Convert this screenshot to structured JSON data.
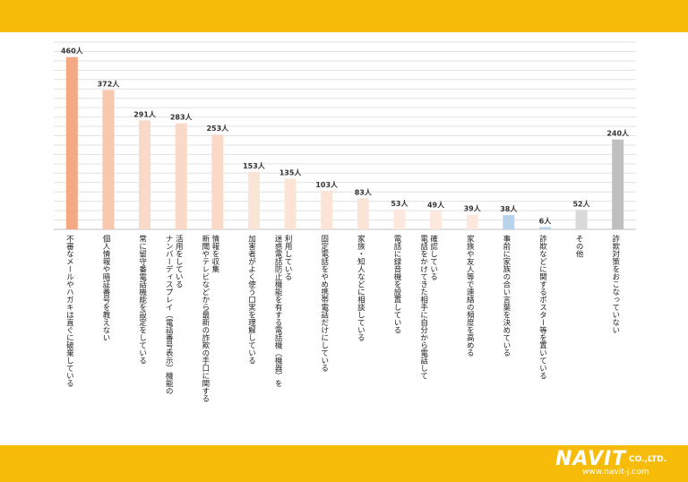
{
  "brand": {
    "name": "NAVIT",
    "suffix": "CO.,LTD.",
    "url": "www.navit-j.com",
    "color": "#F6BC09"
  },
  "chart_data": {
    "type": "bar",
    "unit": "人",
    "ylim": [
      0,
      500
    ],
    "grid": true,
    "legend": "none",
    "categories": [
      "不審なメールやハガキは直ぐに破棄している",
      "個人情報や暗証番号を教えない",
      "常に留守番電話機能を設定をしている",
      "ナンバーディスプレイ（電話番号表示）機能の活用をしている",
      "新聞やテレビなどから最新の詐欺の手口に関する情報を収集",
      "加害者がよく使う口実を理解している",
      "迷惑電話防止機能を有する電話機（機器）を利用している",
      "固定電話をやめ携帯電話だけにしている",
      "家族・知人などに相談している",
      "電話に録音機を設置している",
      "電話をかけてきた相手に自分から電話して確認している",
      "家族や友人等で連絡の頻度を高める",
      "事前に家族の合い言葉を決めている",
      "詐欺などに関するポスター等を置いている",
      "その他",
      "詐欺対策をおこなっていない"
    ],
    "values": [
      460,
      372,
      291,
      283,
      253,
      153,
      135,
      103,
      83,
      53,
      49,
      39,
      38,
      6,
      52,
      240
    ],
    "value_labels": [
      "460人",
      "372人",
      "291人",
      "283人",
      "253人",
      "153人",
      "135人",
      "103人",
      "83人",
      "53人",
      "49人",
      "39人",
      "38人",
      "6人",
      "52人",
      "240人"
    ],
    "label_lines": [
      [
        "不審なメールやハガキは直ぐに破棄している"
      ],
      [
        "個人情報や暗証番号を教えない"
      ],
      [
        "常に留守番電話機能を設定をしている"
      ],
      [
        "ナンバーディスプレイ（電話番号表示）機能の",
        "活用をしている"
      ],
      [
        "新聞やテレビなどから最新の詐欺の手口に関する",
        "情報を収集"
      ],
      [
        "加害者がよく使う口実を理解している"
      ],
      [
        "迷惑電話防止機能を有する電話機（機器）を",
        "利用している"
      ],
      [
        "固定電話をやめ携帯電話だけにしている"
      ],
      [
        "家族・知人などに相談している"
      ],
      [
        "電話に録音機を設置している"
      ],
      [
        "電話をかけてきた相手に自分から電話して",
        "確認している"
      ],
      [
        "家族や友人等で連絡の頻度を高める"
      ],
      [
        "事前に家族の合い言葉を決めている"
      ],
      [
        "詐欺などに関するポスター等を置いている"
      ],
      [
        "その他"
      ],
      [
        "詐欺対策をおこなっていない"
      ]
    ],
    "colors": [
      "#F4A983",
      "#F7C7AE",
      "#FAD9C8",
      "#FAD9C8",
      "#FAD9C8",
      "#FBE3D6",
      "#FBE3D6",
      "#FBE3D6",
      "#FBE3D6",
      "#FCE8DD",
      "#FCE8DD",
      "#FCE8DD",
      "#B9D3EC",
      "#B9D3EC",
      "#D9D9D9",
      "#BFBFBF"
    ]
  }
}
